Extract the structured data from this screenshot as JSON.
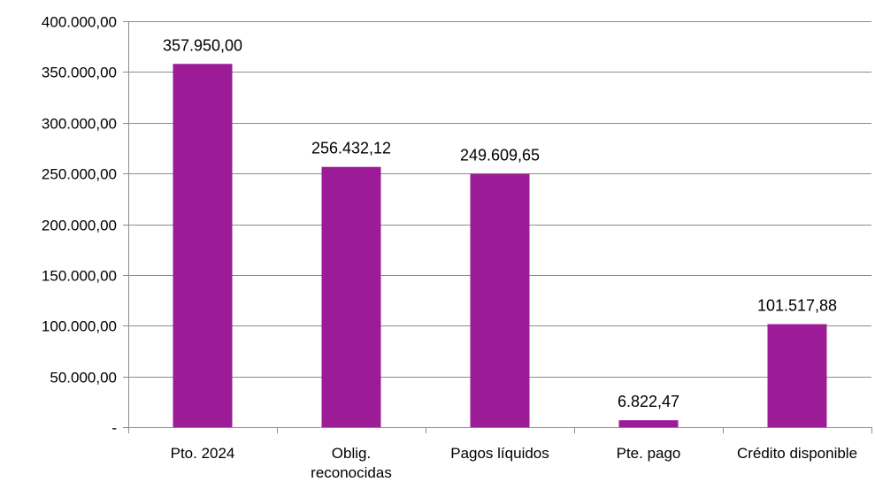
{
  "chart_data": {
    "type": "bar",
    "categories": [
      "Pto. 2024",
      "Oblig. reconocidas",
      "Pagos líquidos",
      "Pte. pago",
      "Crédito disponible"
    ],
    "category_lines": [
      [
        "Pto. 2024"
      ],
      [
        "Oblig.",
        "reconocidas"
      ],
      [
        "Pagos líquidos"
      ],
      [
        "Pte. pago"
      ],
      [
        "Crédito disponible"
      ]
    ],
    "values": [
      357950.0,
      256432.12,
      249609.65,
      6822.47,
      101517.88
    ],
    "data_labels": [
      "357.950,00",
      "256.432,12",
      "249.609,65",
      "6.822,47",
      "101.517,88"
    ],
    "ylim": [
      0,
      400000
    ],
    "yticks": [
      0,
      50000,
      100000,
      150000,
      200000,
      250000,
      300000,
      350000,
      400000
    ],
    "ytick_labels": [
      "-",
      "50.000,00",
      "100.000,00",
      "150.000,00",
      "200.000,00",
      "250.000,00",
      "300.000,00",
      "350.000,00",
      "400.000,00"
    ],
    "grid": true,
    "legend": false,
    "colors": {
      "bar": "#9b1c96",
      "grid": "#8c8c8c",
      "axis": "#8c8c8c"
    }
  }
}
